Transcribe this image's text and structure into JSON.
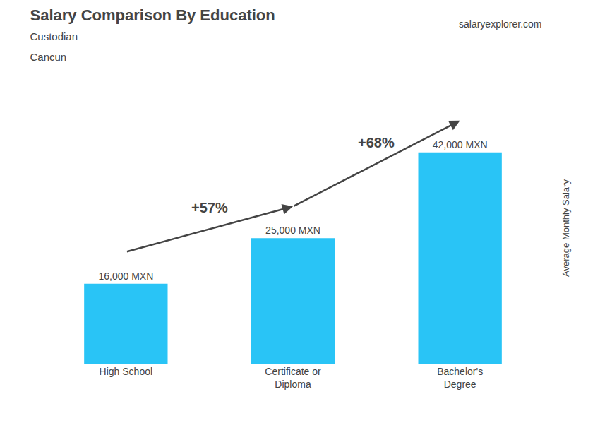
{
  "chart_data": {
    "type": "bar",
    "title": "Salary Comparison By Education",
    "subtitle": [
      "Custodian",
      "Cancun"
    ],
    "ylabel": "Average Monthly Salary",
    "categories": [
      "High School",
      "Certificate or\nDiploma",
      "Bachelor's\nDegree"
    ],
    "values": [
      16000,
      25000,
      42000
    ],
    "value_labels": [
      "16,000 MXN",
      "25,000 MXN",
      "42,000 MXN"
    ],
    "data_labels": true,
    "color": "#29c4f6",
    "ylim": [
      0,
      54000
    ],
    "grid": false,
    "tick_labels": "x",
    "annotations": [
      "+57%",
      "+68%",
      "salaryexplorer.com"
    ]
  }
}
